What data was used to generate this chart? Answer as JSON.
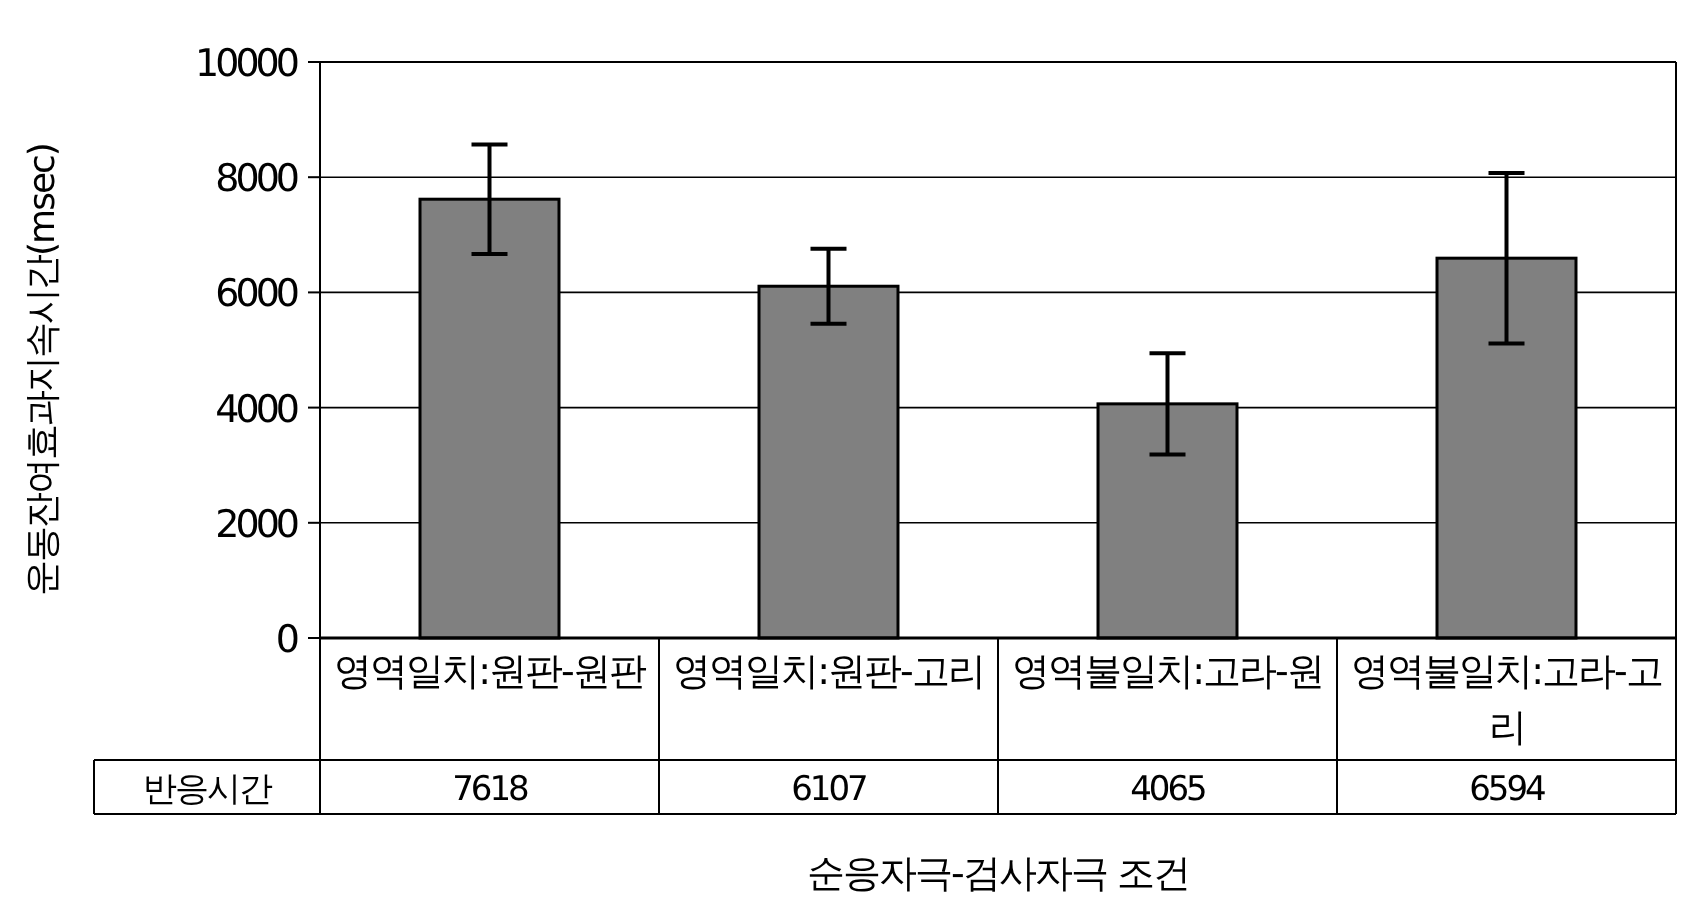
{
  "chart_data": {
    "type": "bar",
    "ylabel": "운동잔여효과지속시간(msec)",
    "xlabel": "순응자극-검사자극 조건",
    "categories": [
      "영역일치:원판-원판",
      "영역일치:원판-고리",
      "영역불일치:고라-원",
      "영역불일치:고라-고리"
    ],
    "series": [
      {
        "name": "반응시간",
        "color": "#808080",
        "values": [
          7618,
          6107,
          4065,
          6594
        ],
        "errors": [
          950,
          650,
          880,
          1480
        ]
      }
    ],
    "ylim": [
      0,
      10000
    ],
    "yticks": [
      0,
      2000,
      4000,
      6000,
      8000,
      10000
    ],
    "grid": "y",
    "data_labels": true
  }
}
